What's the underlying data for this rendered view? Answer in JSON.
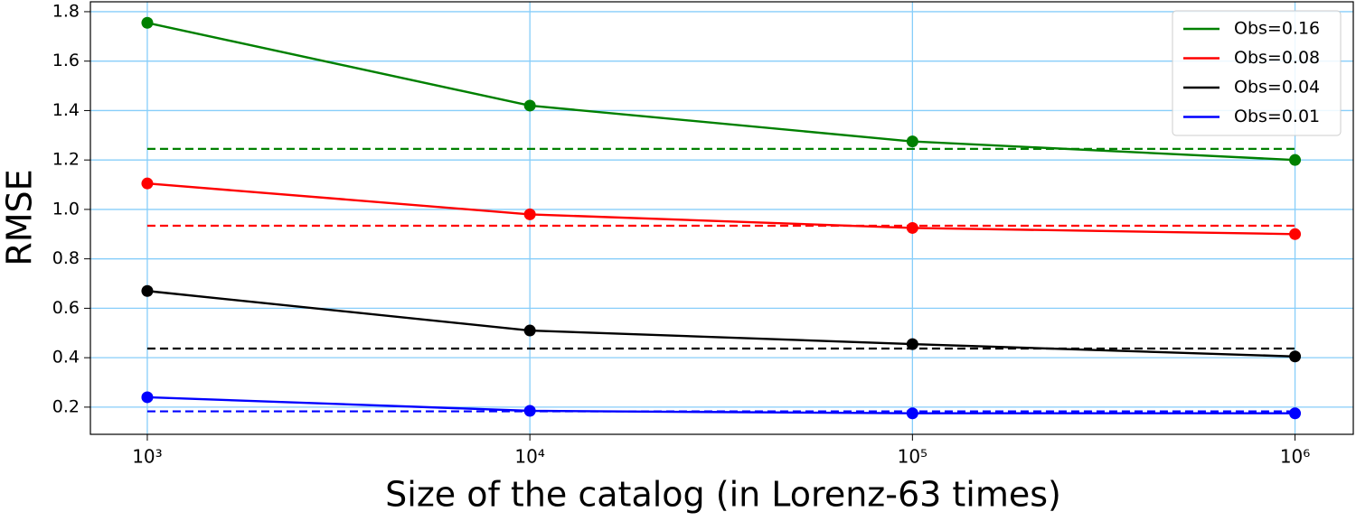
{
  "chart_data": {
    "type": "line",
    "xlabel": "Size of the catalog (in Lorenz-63 times)",
    "ylabel": "RMSE",
    "x": [
      1000,
      10000,
      100000,
      1000000
    ],
    "series": [
      {
        "name": "Obs=0.16",
        "color": "#008000",
        "values": [
          1.755,
          1.42,
          1.275,
          1.2
        ]
      },
      {
        "name": "Obs=0.08",
        "color": "#ff0000",
        "values": [
          1.105,
          0.98,
          0.925,
          0.9
        ]
      },
      {
        "name": "Obs=0.04",
        "color": "#000000",
        "values": [
          0.67,
          0.51,
          0.455,
          0.405
        ]
      },
      {
        "name": "Obs=0.01",
        "color": "#0000ff",
        "values": [
          0.24,
          0.185,
          0.175,
          0.175
        ]
      }
    ],
    "hlines": [
      {
        "value": 1.245,
        "color": "#008000"
      },
      {
        "value": 0.934,
        "color": "#ff0000"
      },
      {
        "value": 0.437,
        "color": "#000000"
      },
      {
        "value": 0.183,
        "color": "#0000ff"
      }
    ],
    "xscale": "log",
    "xlim": [
      710,
      1420000
    ],
    "xticks": [
      {
        "value": 1000,
        "label": "10³"
      },
      {
        "value": 10000,
        "label": "10⁴"
      },
      {
        "value": 100000,
        "label": "10⁵"
      },
      {
        "value": 1000000,
        "label": "10⁶"
      }
    ],
    "ylim": [
      0.09,
      1.84
    ],
    "yticks": [
      {
        "value": 0.2,
        "label": "0.2"
      },
      {
        "value": 0.4,
        "label": "0.4"
      },
      {
        "value": 0.6,
        "label": "0.6"
      },
      {
        "value": 0.8,
        "label": "0.8"
      },
      {
        "value": 1.0,
        "label": "1.0"
      },
      {
        "value": 1.2,
        "label": "1.2"
      },
      {
        "value": 1.4,
        "label": "1.4"
      },
      {
        "value": 1.6,
        "label": "1.6"
      },
      {
        "value": 1.8,
        "label": "1.8"
      }
    ],
    "grid": true,
    "grid_color": "#87cefa",
    "legend": "upper right"
  }
}
